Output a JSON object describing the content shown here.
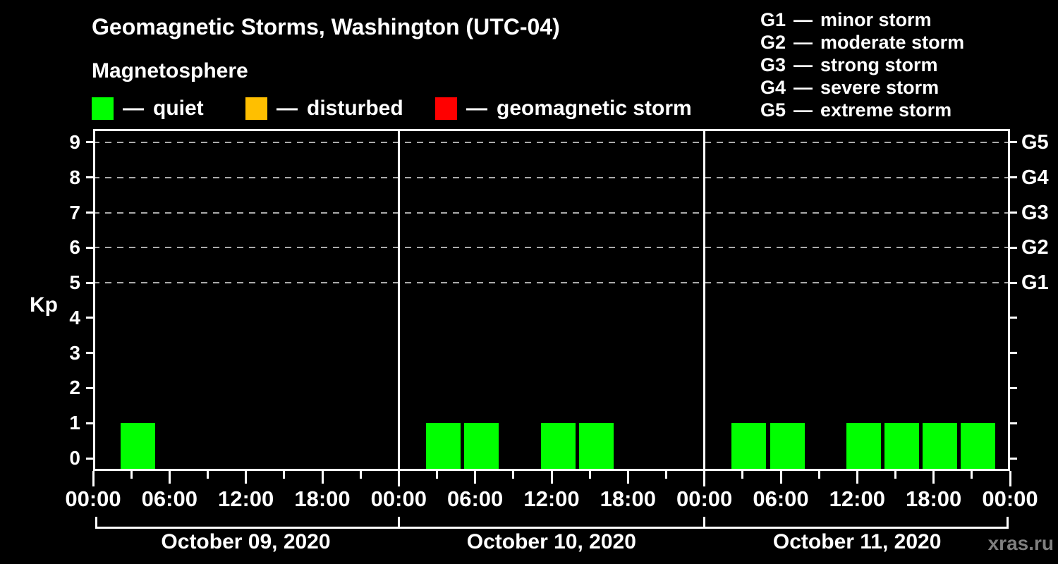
{
  "header": {
    "title": "Geomagnetic Storms, Washington (UTC-04)"
  },
  "legend": {
    "title": "Magnetosphere",
    "separator": "—",
    "items": [
      {
        "label": "quiet",
        "color": "#00ff00"
      },
      {
        "label": "disturbed",
        "color": "#ffbf00"
      },
      {
        "label": "geomagnetic storm",
        "color": "#ff0000"
      }
    ]
  },
  "g_scale_legend": {
    "items": [
      {
        "code": "G1",
        "label": "minor storm"
      },
      {
        "code": "G2",
        "label": "moderate storm"
      },
      {
        "code": "G3",
        "label": "strong storm"
      },
      {
        "code": "G4",
        "label": "severe storm"
      },
      {
        "code": "G5",
        "label": "extreme storm"
      }
    ]
  },
  "watermark": "xras.ru",
  "colors": {
    "background": "#000000",
    "text": "#ffffff",
    "axis": "#ffffff",
    "grid": "#aaaaaa",
    "watermark": "#7f7f7f"
  },
  "chart_data": {
    "type": "bar",
    "title": "Geomagnetic Storms, Washington (UTC-04)",
    "subtitle": "Magnetosphere",
    "ylabel": "Kp",
    "timezone": "UTC-04",
    "ylim": [
      -0.36,
      9.38
    ],
    "y_ticks": [
      0,
      1,
      2,
      3,
      4,
      5,
      6,
      7,
      8,
      9
    ],
    "grid_kp_levels": [
      5,
      6,
      7,
      8,
      9
    ],
    "grid_style": "dashed",
    "legend_position": "top",
    "right_axis_labels": [
      {
        "label": "G1",
        "kp": 5
      },
      {
        "label": "G2",
        "kp": 6
      },
      {
        "label": "G3",
        "kp": 7
      },
      {
        "label": "G4",
        "kp": 8
      },
      {
        "label": "G5",
        "kp": 9
      }
    ],
    "x_time_labels": [
      "00:00",
      "06:00",
      "12:00",
      "18:00",
      "00:00",
      "06:00",
      "12:00",
      "18:00",
      "00:00",
      "06:00",
      "12:00",
      "18:00",
      "00:00"
    ],
    "slot_start_hours_local": [
      2,
      5,
      8,
      11,
      14,
      17,
      20,
      23
    ],
    "slot_duration_hours": 3,
    "days": [
      {
        "date": "October 09, 2020",
        "kp": [
          1,
          0,
          0,
          0,
          0,
          0,
          0,
          0
        ]
      },
      {
        "date": "October 10, 2020",
        "kp": [
          1,
          1,
          0,
          1,
          1,
          0,
          0,
          0
        ]
      },
      {
        "date": "October 11, 2020",
        "kp": [
          1,
          1,
          0,
          1,
          1,
          1,
          1,
          0
        ]
      }
    ],
    "status_rule": {
      "quiet_kp_max": 3,
      "disturbed_kp": 4,
      "storm_kp_min": 5
    },
    "bar_color_by_status": {
      "quiet": "#00ff00",
      "disturbed": "#ffbf00",
      "storm": "#ff0000"
    }
  }
}
